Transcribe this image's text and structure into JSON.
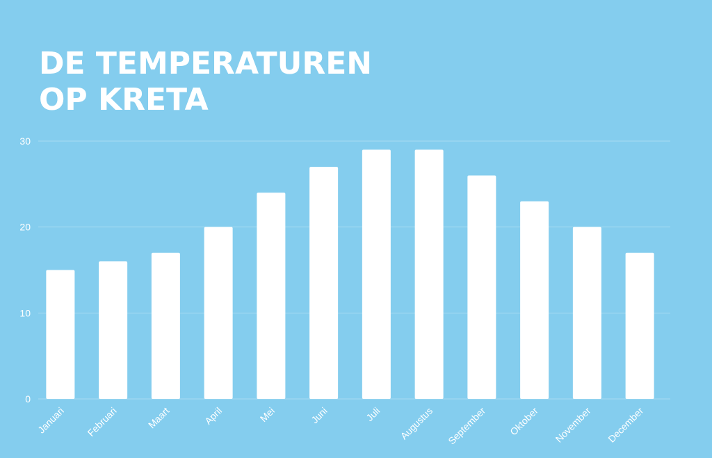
{
  "chart_data": {
    "type": "bar",
    "title_lines": [
      "DE TEMPERATUREN",
      "OP KRETA"
    ],
    "categories": [
      "Januari",
      "Februari",
      "Maart",
      "April",
      "Mei",
      "Juni",
      "Juli",
      "Augustus",
      "September",
      "Oktober",
      "November",
      "December"
    ],
    "values": [
      15,
      16,
      17,
      20,
      24,
      27,
      29,
      29,
      26,
      23,
      20,
      17
    ],
    "ylim": [
      0,
      30
    ],
    "yticks": [
      0,
      10,
      20,
      30
    ],
    "grid": true,
    "colors": {
      "background": "#84cdee",
      "bar": "#ffffff",
      "grid": "#a9dcf3",
      "text": "#ffffff"
    }
  }
}
